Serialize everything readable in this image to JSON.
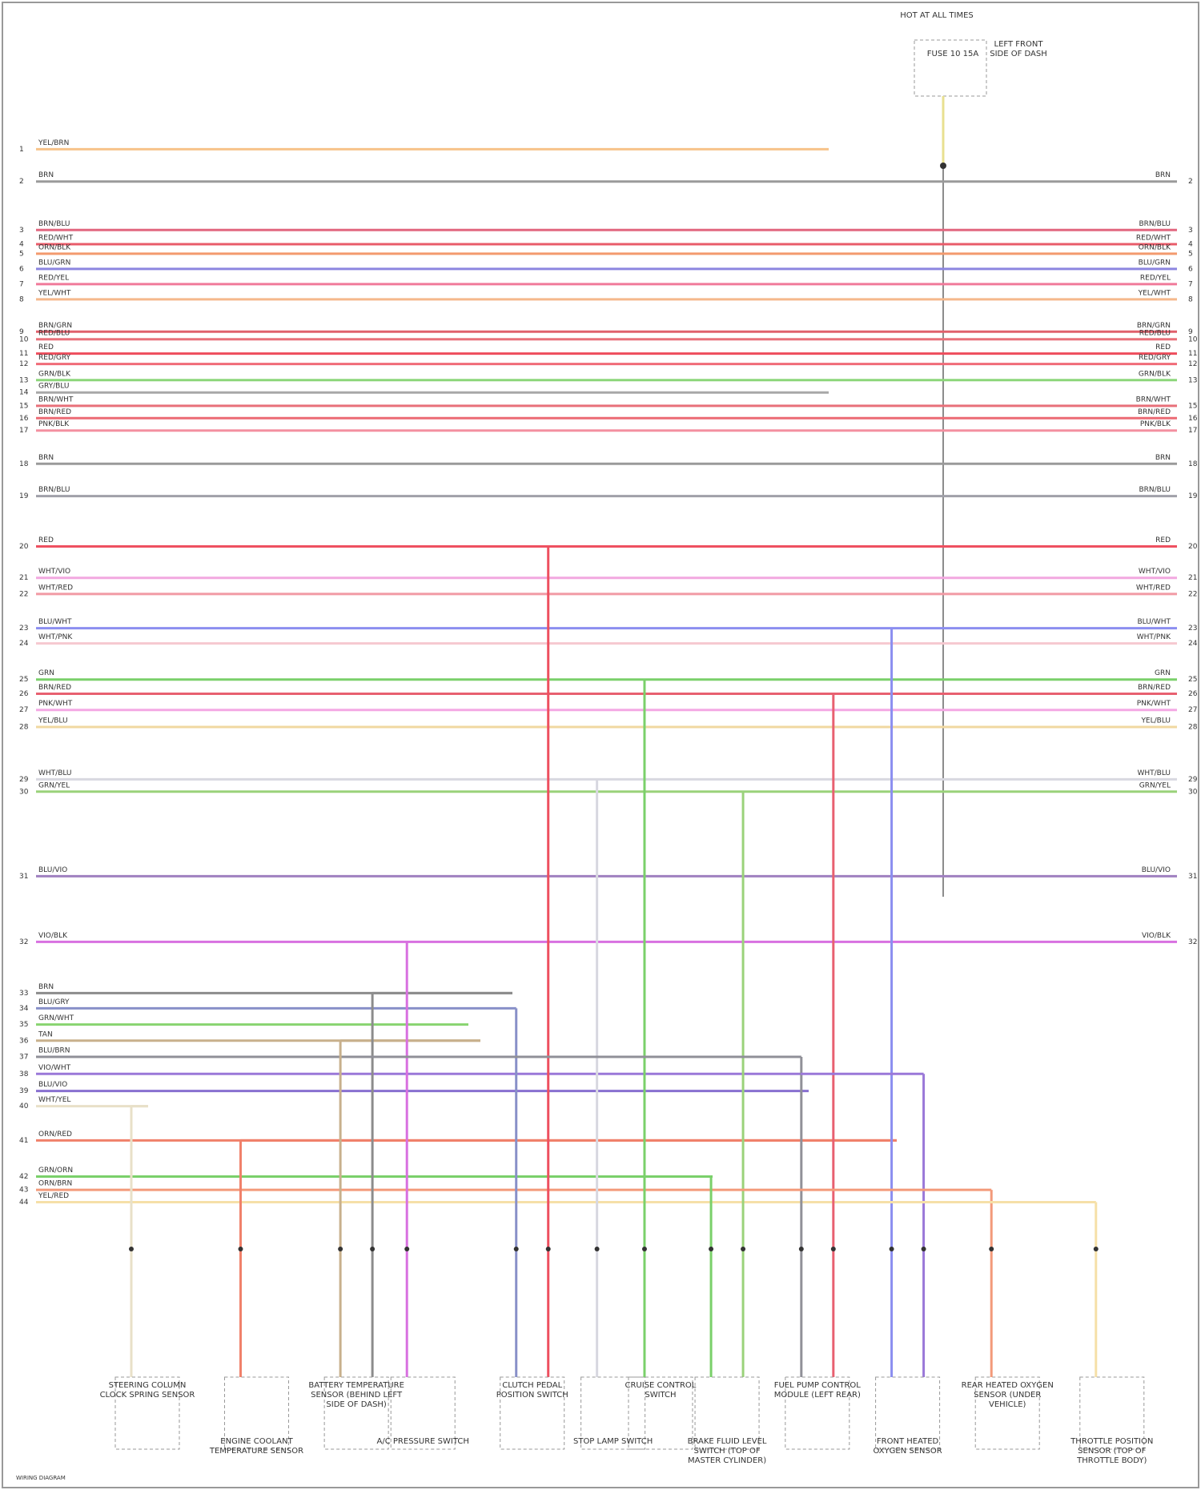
{
  "top_component": {
    "label": "HOT AT ALL TIMES",
    "fuse": "FUSE 10 15A",
    "location": "LEFT FRONT SIDE OF DASH"
  },
  "wires": [
    {
      "pin": "1",
      "label": "YEL/BRN",
      "color": "#f7c38a"
    },
    {
      "pin": "2",
      "label": "BRN",
      "color": "#9a9a9a"
    },
    {
      "pin": "3",
      "label": "BRN/BLU",
      "color": "#e2677f"
    },
    {
      "pin": "4",
      "label": "RED/WHT",
      "color": "#e85c6a"
    },
    {
      "pin": "5",
      "label": "ORN/BLK",
      "color": "#f39a6e"
    },
    {
      "pin": "6",
      "label": "BLU/GRN",
      "color": "#8c86e0"
    },
    {
      "pin": "7",
      "label": "RED/YEL",
      "color": "#f07a9a"
    },
    {
      "pin": "8",
      "label": "YEL/WHT",
      "color": "#f5b88c"
    },
    {
      "pin": "9",
      "label": "BRN/GRN",
      "color": "#e0606c"
    },
    {
      "pin": "10",
      "label": "RED/BLU",
      "color": "#e8707a"
    },
    {
      "pin": "11",
      "label": "RED",
      "color": "#ee4d5c"
    },
    {
      "pin": "12",
      "label": "RED/GRY",
      "color": "#f06b78"
    },
    {
      "pin": "13",
      "label": "GRN/BLK",
      "color": "#8cd67a"
    },
    {
      "pin": "14",
      "label": "GRY/BLU",
      "color": "#a8a8a8"
    },
    {
      "pin": "15",
      "label": "BRN/WHT",
      "color": "#e8707a"
    },
    {
      "pin": "16",
      "label": "BRN/RED",
      "color": "#ec6a74"
    },
    {
      "pin": "17",
      "label": "PNK/BLK",
      "color": "#f490a0"
    },
    {
      "pin": "18",
      "label": "BRN",
      "color": "#9a9a9a"
    },
    {
      "pin": "19",
      "label": "BRN/BLU",
      "color": "#a0a0a8"
    },
    {
      "pin": "20",
      "label": "RED",
      "color": "#ee5060"
    },
    {
      "pin": "21",
      "label": "WHT/VIO",
      "color": "#f2a8e0"
    },
    {
      "pin": "22",
      "label": "WHT/RED",
      "color": "#f19aa4"
    },
    {
      "pin": "23",
      "label": "BLU/WHT",
      "color": "#8b8ef0"
    },
    {
      "pin": "24",
      "label": "WHT/PNK",
      "color": "#f6c8d0"
    },
    {
      "pin": "25",
      "label": "GRN",
      "color": "#7ad06a"
    },
    {
      "pin": "26",
      "label": "BRN/RED",
      "color": "#e86070"
    },
    {
      "pin": "27",
      "label": "PNK/WHT",
      "color": "#f4a8e4"
    },
    {
      "pin": "28",
      "label": "YEL/BLU",
      "color": "#f0d8a0"
    },
    {
      "pin": "29",
      "label": "WHT/BLU",
      "color": "#d8d8e0"
    },
    {
      "pin": "30",
      "label": "GRN/YEL",
      "color": "#9ad27a"
    },
    {
      "pin": "31",
      "label": "BLU/VIO",
      "color": "#a080c0"
    },
    {
      "pin": "32",
      "label": "VIO/BLK",
      "color": "#d870e0"
    },
    {
      "pin": "33",
      "label": "BRN",
      "color": "#8c8c8c"
    },
    {
      "pin": "34",
      "label": "BLU/GRY",
      "color": "#8890c8"
    },
    {
      "pin": "35",
      "label": "GRN/WHT",
      "color": "#88d470"
    },
    {
      "pin": "36",
      "label": "TAN",
      "color": "#c8b08c"
    },
    {
      "pin": "37",
      "label": "BLU/BRN",
      "color": "#909098"
    },
    {
      "pin": "38",
      "label": "VIO/WHT",
      "color": "#9a78d8"
    },
    {
      "pin": "39",
      "label": "BLU/VIO",
      "color": "#8870d0"
    },
    {
      "pin": "40",
      "label": "WHT/YEL",
      "color": "#e8e0c8"
    },
    {
      "pin": "41",
      "label": "ORN/RED",
      "color": "#f0806a"
    },
    {
      "pin": "42",
      "label": "GRN/ORN",
      "color": "#7ad06a"
    },
    {
      "pin": "43",
      "label": "ORN/BRN",
      "color": "#f39a7a"
    },
    {
      "pin": "44",
      "label": "YEL/RED",
      "color": "#f6e0a8"
    }
  ],
  "components": [
    {
      "label": "STEERING COLUMN CLOCK SPRING SENSOR"
    },
    {
      "label": "ENGINE COOLANT TEMPERATURE SENSOR"
    },
    {
      "label": "BATTERY TEMPERATURE SENSOR (BEHIND LEFT SIDE OF DASH)"
    },
    {
      "label": "A/C PRESSURE SWITCH"
    },
    {
      "label": "CLUTCH PEDAL POSITION SWITCH"
    },
    {
      "label": "STOP LAMP SWITCH"
    },
    {
      "label": "CRUISE CONTROL SWITCH"
    },
    {
      "label": "BRAKE FLUID LEVEL SWITCH (TOP OF MASTER CYLINDER)"
    },
    {
      "label": "FUEL PUMP CONTROL MODULE (LEFT REAR)"
    },
    {
      "label": "FRONT HEATED OXYGEN SENSOR"
    },
    {
      "label": "REAR HEATED OXYGEN SENSOR (UNDER VEHICLE)"
    },
    {
      "label": "THROTTLE POSITION SENSOR (TOP OF THROTTLE BODY)"
    }
  ],
  "footer": "WIRING DIAGRAM"
}
